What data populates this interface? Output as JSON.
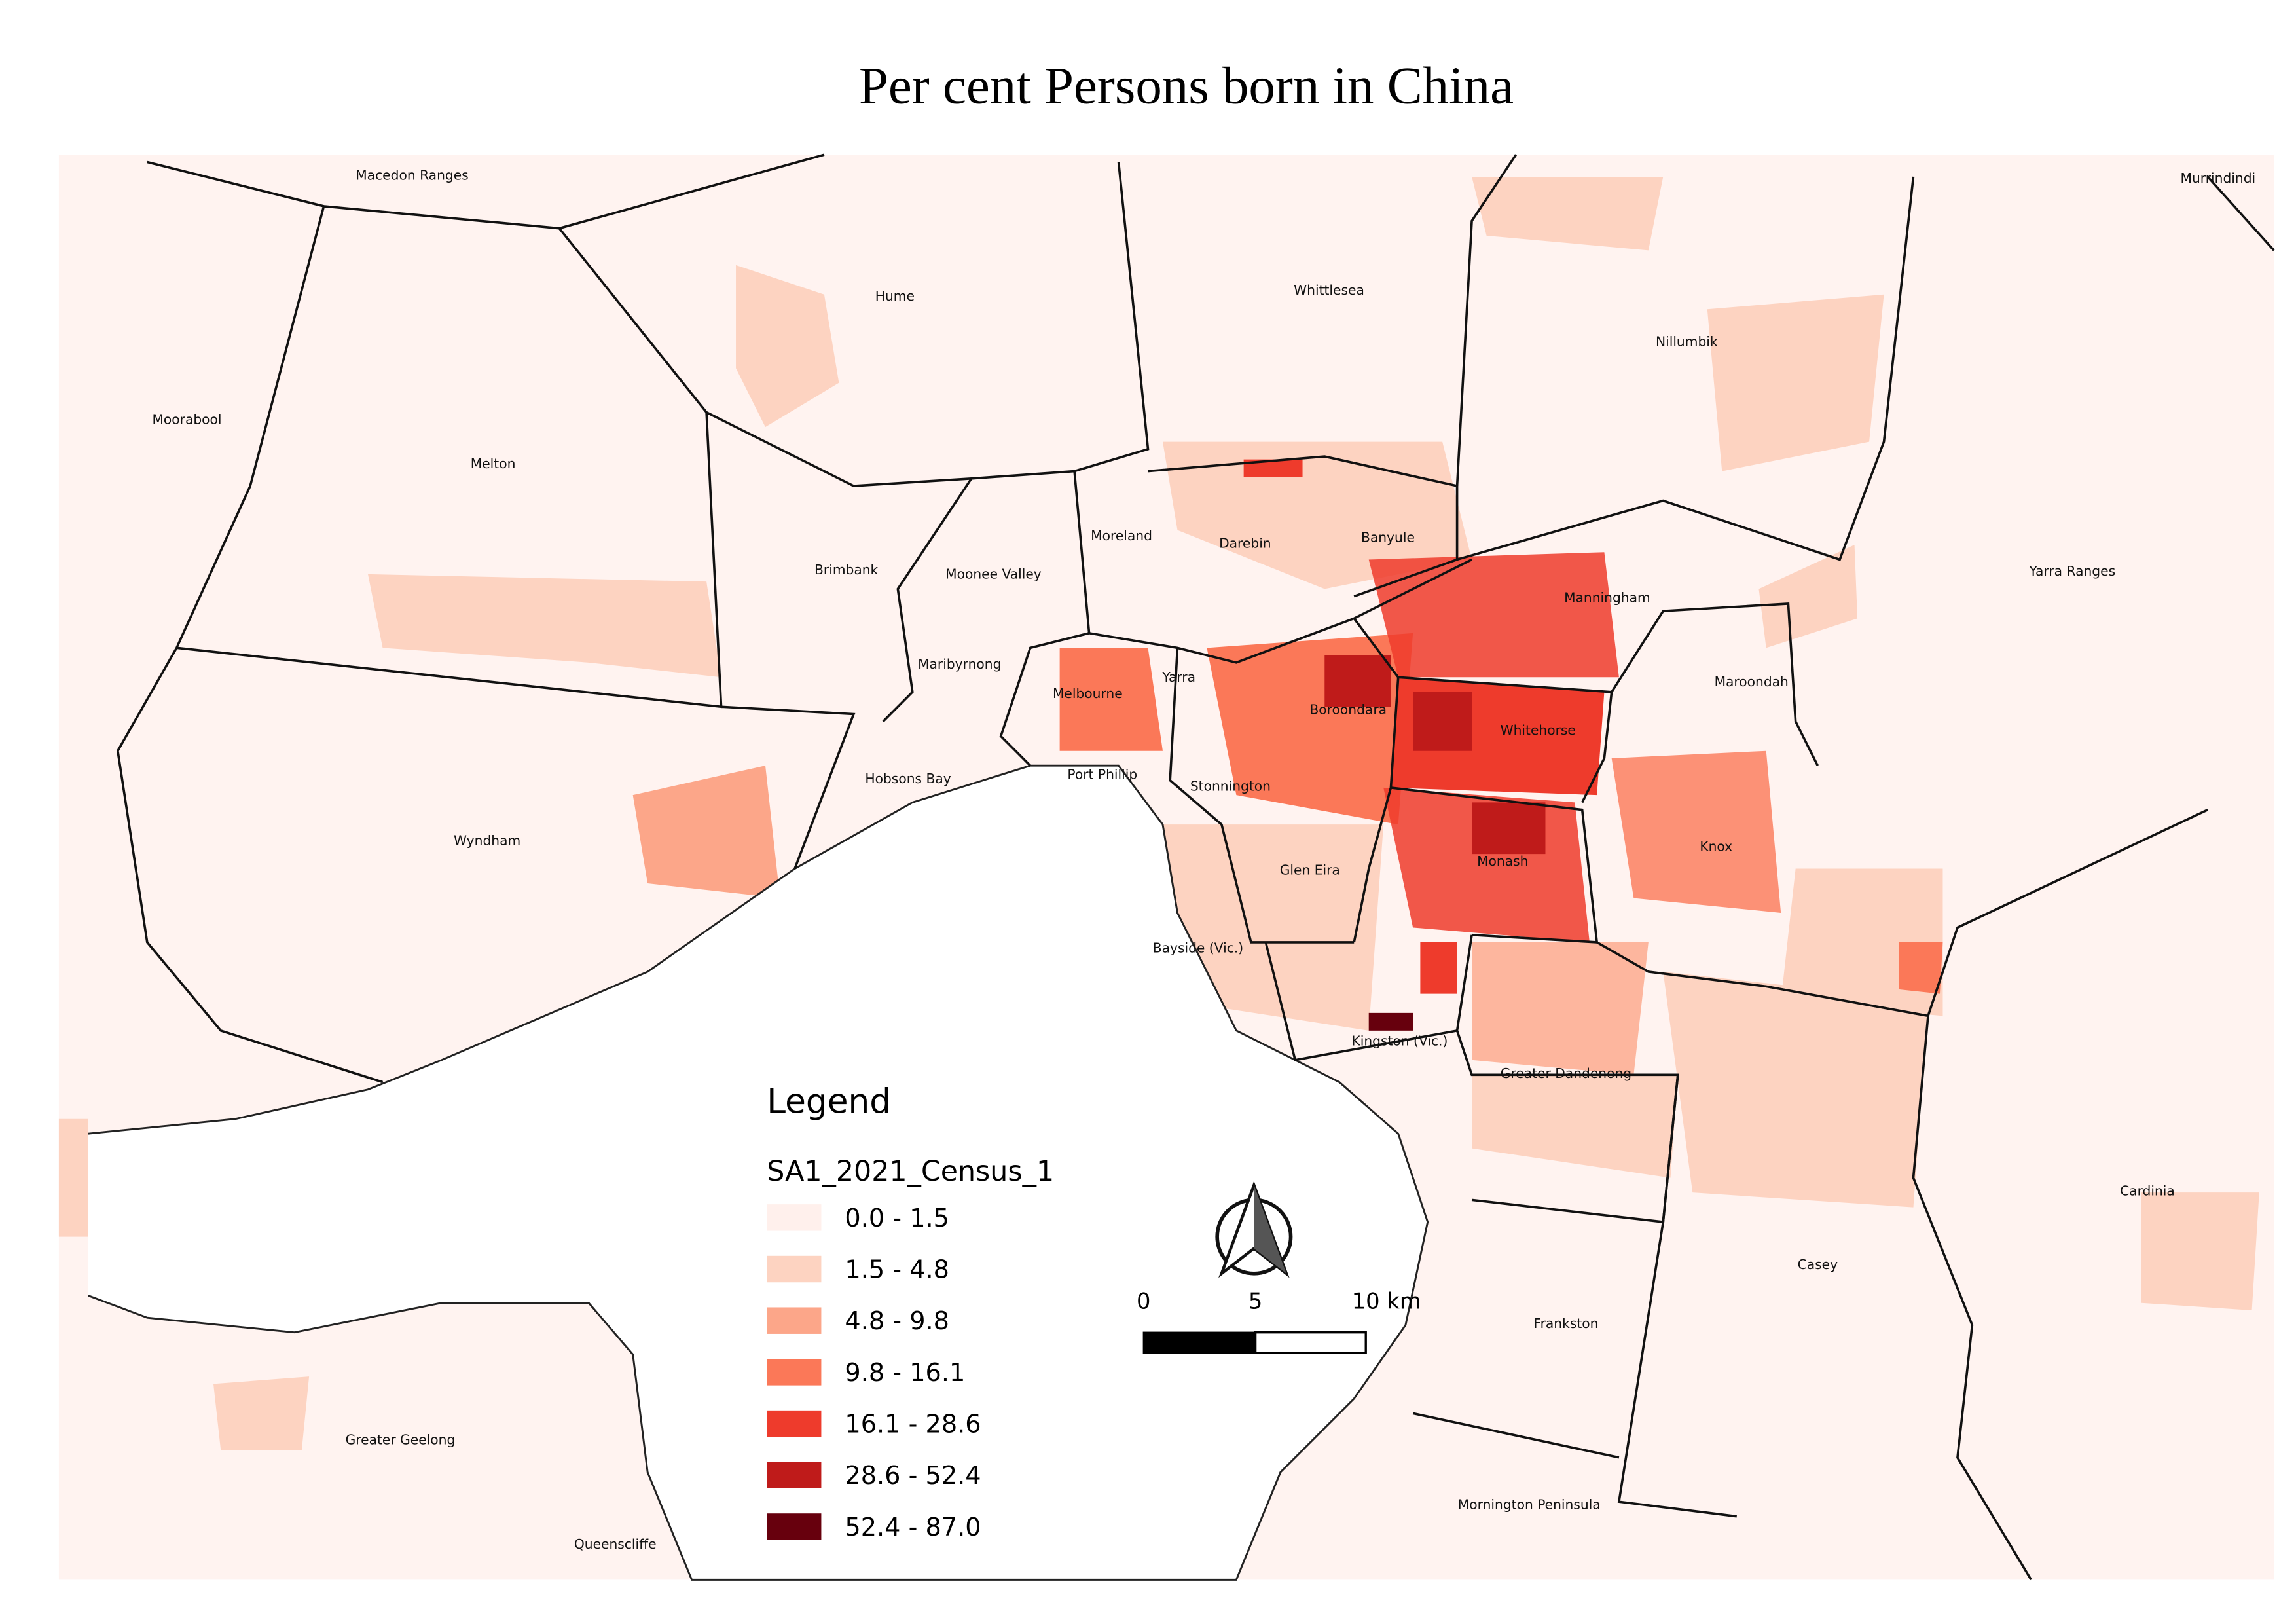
{
  "title": "Per cent Persons born in China",
  "regions": [
    "Macedon Ranges",
    "Hume",
    "Whittlesea",
    "Nillumbik",
    "Murrindindi",
    "Moorabool",
    "Melton",
    "Brimbank",
    "Moonee Valley",
    "Moreland",
    "Darebin",
    "Banyule",
    "Yarra Ranges",
    "Manningham",
    "Maribyrnong",
    "Melbourne",
    "Yarra",
    "Boroondara",
    "Whitehorse",
    "Maroondah",
    "Hobsons Bay",
    "Port Phillip",
    "Stonnington",
    "Wyndham",
    "Knox",
    "Monash",
    "Glen Eira",
    "Bayside (Vic.)",
    "Kingston (Vic.)",
    "Greater Dandenong",
    "Cardinia",
    "Casey",
    "Frankston",
    "Greater Geelong",
    "Mornington Peninsula",
    "Queenscliffe"
  ],
  "legend": {
    "heading": "Legend",
    "title": "SA1_2021_Census_1",
    "items": [
      {
        "label": "0.0 - 1.5",
        "color": "#fff0ec"
      },
      {
        "label": "1.5 - 4.8",
        "color": "#fdd3c1"
      },
      {
        "label": "4.8 - 9.8",
        "color": "#fca689"
      },
      {
        "label": "9.8 - 16.1",
        "color": "#fb7858"
      },
      {
        "label": "16.1 - 28.6",
        "color": "#ee3b2c"
      },
      {
        "label": "28.6 - 52.4",
        "color": "#bf1b1a"
      },
      {
        "label": "52.4 - 87.0",
        "color": "#67000d"
      }
    ]
  },
  "scale_bar": {
    "labels": [
      "0",
      "5",
      "10 km"
    ]
  }
}
